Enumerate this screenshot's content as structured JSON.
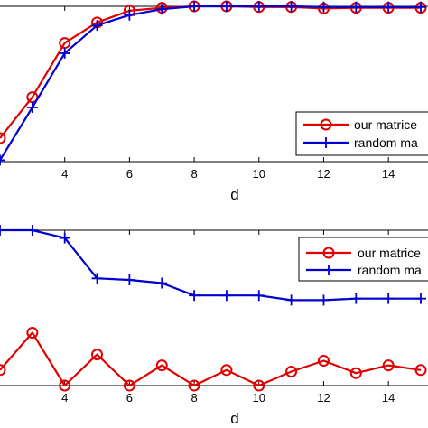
{
  "chart_data": [
    {
      "type": "line",
      "xlabel": "d",
      "ylabel": "",
      "xlim": [
        1.7,
        15.2
      ],
      "ylim": [
        -0.06,
        1.0
      ],
      "x_ticks": [
        4,
        6,
        8,
        10,
        12,
        14
      ],
      "x_tick_labels": [
        "4",
        "6",
        "8",
        "10",
        "12",
        "14"
      ],
      "legend_position": "bottom-right",
      "series": [
        {
          "name": "our matrice",
          "color": "#e00000",
          "marker": "circle",
          "x": [
            2,
            3,
            4,
            5,
            6,
            7,
            8,
            9,
            10,
            11,
            12,
            13,
            14,
            15
          ],
          "y": [
            0.1,
            0.38,
            0.75,
            0.89,
            0.97,
            0.99,
            1.0,
            1.0,
            0.995,
            0.995,
            0.985,
            0.99,
            0.99,
            0.99
          ]
        },
        {
          "name": "random ma",
          "color": "#0000d0",
          "marker": "plus",
          "x": [
            2,
            3,
            4,
            5,
            6,
            7,
            8,
            9,
            10,
            11,
            12,
            13,
            14,
            15
          ],
          "y": [
            -0.05,
            0.31,
            0.68,
            0.87,
            0.94,
            0.98,
            1.0,
            1.0,
            1.0,
            1.0,
            0.995,
            0.995,
            0.995,
            0.995
          ]
        }
      ]
    },
    {
      "type": "line",
      "xlabel": "d",
      "ylabel": "",
      "xlim": [
        1.7,
        15.2
      ],
      "ylim": [
        0,
        1.0
      ],
      "x_ticks": [
        4,
        6,
        8,
        10,
        12,
        14
      ],
      "x_tick_labels": [
        "4",
        "6",
        "8",
        "10",
        "12",
        "14"
      ],
      "legend_position": "top-right",
      "series": [
        {
          "name": "our matrice",
          "color": "#e00000",
          "marker": "circle",
          "x": [
            2,
            3,
            4,
            5,
            6,
            7,
            8,
            9,
            10,
            11,
            12,
            13,
            14,
            15
          ],
          "y": [
            0.1,
            0.34,
            0.0,
            0.2,
            0.0,
            0.13,
            0.0,
            0.1,
            0.0,
            0.09,
            0.16,
            0.08,
            0.13,
            0.1
          ]
        },
        {
          "name": "random ma",
          "color": "#0000d0",
          "marker": "plus",
          "x": [
            2,
            3,
            4,
            5,
            6,
            7,
            8,
            9,
            10,
            11,
            12,
            13,
            14,
            15
          ],
          "y": [
            1.0,
            1.0,
            0.95,
            0.69,
            0.68,
            0.66,
            0.58,
            0.58,
            0.58,
            0.55,
            0.55,
            0.56,
            0.56,
            0.56
          ]
        }
      ]
    }
  ]
}
